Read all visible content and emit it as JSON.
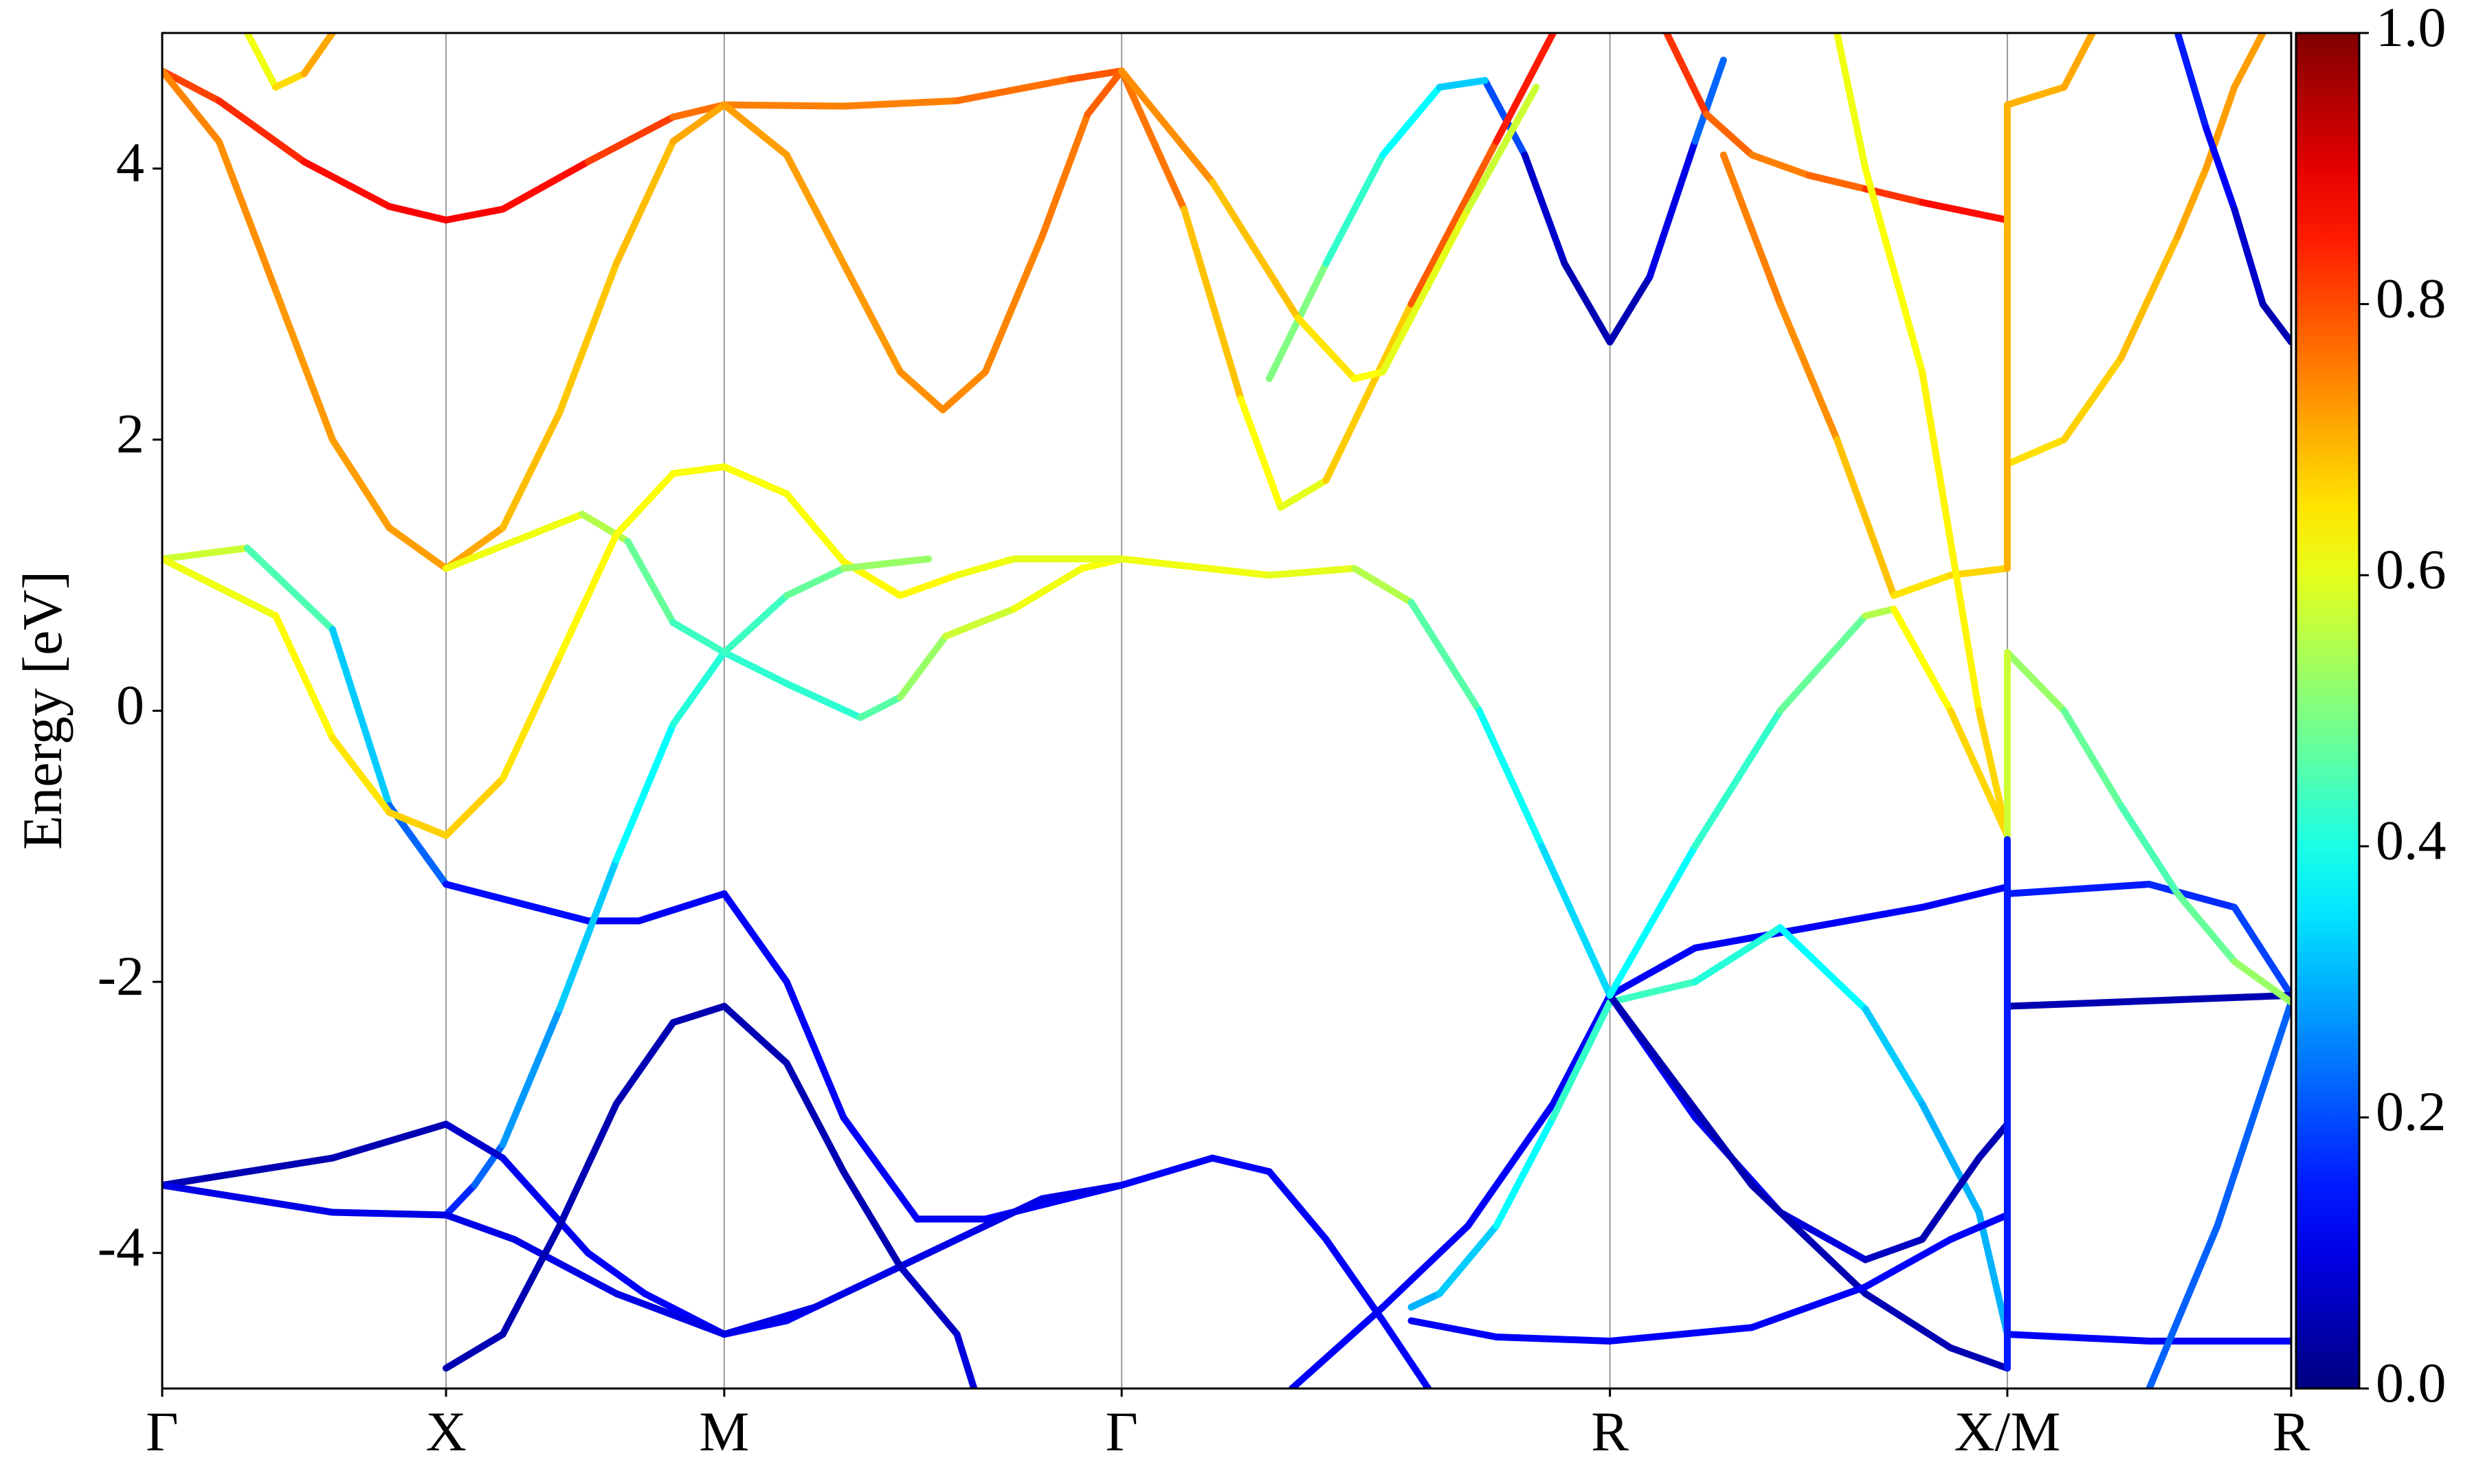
{
  "chart_data": {
    "type": "line",
    "ylabel": "Energy [eV]",
    "xlim": [
      0,
      3.75
    ],
    "ylim": [
      -5,
      5
    ],
    "xticks": [
      {
        "value": 0,
        "label": "Γ"
      },
      {
        "value": 0.5,
        "label": "X"
      },
      {
        "value": 0.99,
        "label": "M"
      },
      {
        "value": 1.69,
        "label": "Γ"
      },
      {
        "value": 2.55,
        "label": "R"
      },
      {
        "value": 3.25,
        "label": "X/M"
      },
      {
        "value": 3.75,
        "label": "R"
      }
    ],
    "yticks": [
      -4,
      -2,
      0,
      2,
      4
    ],
    "grid": true,
    "colormap": "jet",
    "clim": [
      0,
      1
    ],
    "cticks": [
      {
        "value": 0,
        "label": "0.0"
      },
      0.2,
      0.4,
      0.6,
      0.8,
      {
        "value": 1,
        "label": "1.0"
      }
    ],
    "series": [
      {
        "x": [
          0,
          0.1,
          0.25,
          0.4,
          0.5,
          0.6,
          0.75,
          0.9,
          0.99,
          1.2,
          1.4,
          1.6,
          1.69
        ],
        "values": [
          4.72,
          4.5,
          4.05,
          3.72,
          3.62,
          3.7,
          4.05,
          4.38,
          4.47,
          4.46,
          4.5,
          4.66,
          4.72
        ],
        "weights": [
          0.8,
          0.82,
          0.85,
          0.88,
          0.88,
          0.88,
          0.85,
          0.78,
          0.75,
          0.75,
          0.75,
          0.78,
          0.8
        ]
      },
      {
        "x": [
          0,
          0.1,
          0.2,
          0.3,
          0.4,
          0.5,
          0.6,
          0.7,
          0.8,
          0.9,
          0.99,
          1.1,
          1.2,
          1.3,
          1.375,
          1.45,
          1.55,
          1.63,
          1.69
        ],
        "values": [
          4.72,
          4.2,
          3.1,
          2.0,
          1.35,
          1.05,
          1.35,
          2.2,
          3.3,
          4.2,
          4.47,
          4.1,
          3.3,
          2.5,
          2.22,
          2.5,
          3.5,
          4.4,
          4.72
        ],
        "weights": [
          0.75,
          0.74,
          0.73,
          0.72,
          0.72,
          0.72,
          0.7,
          0.68,
          0.68,
          0.7,
          0.72,
          0.72,
          0.72,
          0.73,
          0.74,
          0.74,
          0.75,
          0.76,
          0.8
        ]
      },
      {
        "x": [
          0.5,
          0.74,
          0.82,
          0.9,
          0.99,
          1.1,
          1.23,
          1.3,
          1.38,
          1.5,
          1.62,
          1.69,
          1.95,
          2.1,
          2.2,
          2.32,
          2.43,
          2.55
        ],
        "values": [
          1.05,
          1.45,
          1.25,
          0.65,
          0.43,
          0.2,
          -0.05,
          0.1,
          0.55,
          0.75,
          1.05,
          1.12,
          1.0,
          1.05,
          0.8,
          0.0,
          -1.0,
          -2.1
        ],
        "weights": [
          0.62,
          0.6,
          0.5,
          0.45,
          0.42,
          0.42,
          0.42,
          0.5,
          0.55,
          0.6,
          0.62,
          0.62,
          0.6,
          0.6,
          0.5,
          0.42,
          0.35,
          0.33
        ]
      },
      {
        "x": [
          0,
          0.15,
          0.3,
          0.4,
          0.5,
          0.75,
          0.84,
          0.99,
          1.1,
          1.2,
          1.33,
          1.45,
          1.69
        ],
        "values": [
          1.12,
          1.2,
          0.6,
          -0.7,
          -1.28,
          -1.55,
          -1.55,
          -1.35,
          -2.0,
          -3.0,
          -3.75,
          -3.75,
          -3.5
        ],
        "weights": [
          0.6,
          0.55,
          0.35,
          0.3,
          0.15,
          0.12,
          0.12,
          0.12,
          0.12,
          0.12,
          0.12,
          0.12,
          0.12
        ]
      },
      {
        "x": [
          0,
          0.2,
          0.3,
          0.4,
          0.5,
          0.6,
          0.7,
          0.8,
          0.9,
          0.99,
          1.1,
          1.2,
          1.3,
          1.4,
          1.5,
          1.69
        ],
        "values": [
          1.12,
          0.7,
          -0.2,
          -0.75,
          -0.92,
          -0.5,
          0.4,
          1.3,
          1.75,
          1.8,
          1.6,
          1.1,
          0.85,
          1.0,
          1.12,
          1.12
        ],
        "weights": [
          0.6,
          0.62,
          0.64,
          0.66,
          0.68,
          0.66,
          0.64,
          0.62,
          0.62,
          0.62,
          0.62,
          0.62,
          0.64,
          0.62,
          0.6,
          0.6
        ]
      },
      {
        "x": [
          0.5,
          0.55,
          0.6,
          0.7,
          0.8,
          0.9,
          0.99,
          1.1,
          1.2,
          1.35
        ],
        "values": [
          -3.72,
          -3.5,
          -3.2,
          -2.2,
          -1.1,
          -0.1,
          0.43,
          0.85,
          1.05,
          1.12
        ],
        "weights": [
          0.12,
          0.2,
          0.25,
          0.3,
          0.35,
          0.4,
          0.42,
          0.45,
          0.5,
          0.55
        ]
      },
      {
        "x": [
          0,
          0.3,
          0.5,
          0.6,
          0.75,
          0.85,
          0.99,
          1.1,
          1.3,
          1.55,
          1.69
        ],
        "values": [
          -3.5,
          -3.3,
          -3.05,
          -3.3,
          -4.0,
          -4.3,
          -4.6,
          -4.5,
          -4.1,
          -3.6,
          -3.5
        ],
        "weights": [
          0.05,
          0.05,
          0.05,
          0.1,
          0.12,
          0.12,
          0.12,
          0.12,
          0.12,
          0.12,
          0.12
        ]
      },
      {
        "x": [
          0,
          0.3,
          0.5,
          0.62,
          0.8,
          0.99,
          1.15,
          1.3,
          1.55,
          1.69
        ],
        "values": [
          -3.5,
          -3.7,
          -3.72,
          -3.9,
          -4.3,
          -4.6,
          -4.4,
          -4.1,
          -3.6,
          -3.5
        ],
        "weights": [
          0.1,
          0.1,
          0.1,
          0.1,
          0.1,
          0.1,
          0.1,
          0.1,
          0.1,
          0.1
        ]
      },
      {
        "x": [
          0.5,
          0.6,
          0.7,
          0.8,
          0.9,
          0.99,
          1.1,
          1.2,
          1.3,
          1.4,
          1.43
        ],
        "values": [
          -4.85,
          -4.6,
          -3.8,
          -2.9,
          -2.3,
          -2.18,
          -2.6,
          -3.4,
          -4.1,
          -4.6,
          -5.0
        ],
        "weights": [
          0.05,
          0.05,
          0.05,
          0.05,
          0.05,
          0.05,
          0.05,
          0.05,
          0.05,
          0.08,
          0.1
        ]
      },
      {
        "x": [
          1.69,
          1.85,
          1.95,
          2.05,
          2.15,
          2.23
        ],
        "values": [
          -3.5,
          -3.3,
          -3.4,
          -3.9,
          -4.5,
          -5.0
        ],
        "weights": [
          0.12,
          0.12,
          0.12,
          0.12,
          0.12,
          0.12
        ]
      },
      {
        "x": [
          1.99,
          2.15,
          2.3,
          2.45,
          2.55,
          2.7,
          2.9,
          3.1,
          3.25,
          3.25,
          3.5,
          3.65,
          3.75
        ],
        "values": [
          -5.0,
          -4.4,
          -3.8,
          -2.9,
          -2.1,
          -1.75,
          -1.6,
          -1.45,
          -1.3,
          -1.35,
          -1.28,
          -1.45,
          -2.1
        ],
        "weights": [
          0.12,
          0.12,
          0.12,
          0.12,
          0.12,
          0.12,
          0.12,
          0.12,
          0.12,
          0.15,
          0.15,
          0.18,
          0.2
        ]
      },
      {
        "x": [
          2.2,
          2.25,
          2.35,
          2.45,
          2.55
        ],
        "values": [
          -4.4,
          -4.3,
          -3.8,
          -3.0,
          -2.15
        ],
        "weights": [
          0.3,
          0.3,
          0.35,
          0.4,
          0.45
        ]
      },
      {
        "x": [
          2.55,
          2.7,
          2.85,
          3.0,
          3.1,
          3.2,
          3.25
        ],
        "values": [
          -2.15,
          -2.0,
          -1.6,
          -2.2,
          -2.9,
          -3.7,
          -4.6
        ],
        "weights": [
          0.45,
          0.42,
          0.4,
          0.35,
          0.3,
          0.3,
          0.3
        ]
      },
      {
        "x": [
          2.55,
          2.7,
          2.85,
          3.0,
          3.1,
          3.2,
          3.25
        ],
        "values": [
          -2.1,
          -3.0,
          -3.7,
          -4.05,
          -3.9,
          -3.3,
          -3.05
        ],
        "weights": [
          0.12,
          0.12,
          0.1,
          0.08,
          0.05,
          0.05,
          0.05
        ]
      },
      {
        "x": [
          2.55,
          2.8,
          3.0,
          3.15,
          3.25
        ],
        "values": [
          -2.1,
          -3.5,
          -4.3,
          -4.7,
          -4.85
        ],
        "weights": [
          0.05,
          0.05,
          0.05,
          0.05,
          0.05
        ]
      },
      {
        "x": [
          2.2,
          2.35,
          2.55,
          2.8,
          3.0,
          3.15,
          3.25
        ],
        "values": [
          -4.5,
          -4.62,
          -4.65,
          -4.55,
          -4.25,
          -3.9,
          -3.72
        ],
        "weights": [
          0.12,
          0.12,
          0.12,
          0.12,
          0.12,
          0.12,
          0.12
        ]
      },
      {
        "x": [
          3.25,
          3.75
        ],
        "values": [
          -2.18,
          -2.1
        ],
        "weights": [
          0.05,
          0.05
        ]
      },
      {
        "x": [
          3.25,
          3.5,
          3.75
        ],
        "values": [
          -4.6,
          -4.65,
          -4.65
        ],
        "weights": [
          0.12,
          0.12,
          0.12
        ]
      },
      {
        "x": [
          3.5,
          3.62,
          3.75
        ],
        "values": [
          -5.0,
          -3.8,
          -2.15
        ],
        "weights": [
          0.22,
          0.22,
          0.22
        ]
      },
      {
        "x": [
          3.25,
          3.35,
          3.45,
          3.55,
          3.65,
          3.75
        ],
        "values": [
          0.43,
          0.0,
          -0.7,
          -1.35,
          -1.85,
          -2.15
        ],
        "weights": [
          0.55,
          0.5,
          0.45,
          0.45,
          0.5,
          0.55
        ]
      },
      {
        "x": [
          3.25,
          3.35,
          3.45,
          3.55,
          3.6,
          3.65,
          3.7
        ],
        "values": [
          1.82,
          2.0,
          2.6,
          3.5,
          4.0,
          4.6,
          5.0
        ],
        "weights": [
          0.65,
          0.66,
          0.68,
          0.7,
          0.72,
          0.72,
          0.72
        ]
      },
      {
        "x": [
          3.25,
          3.35,
          3.4
        ],
        "values": [
          4.47,
          4.6,
          5.0
        ],
        "weights": [
          0.7,
          0.7,
          0.72
        ]
      },
      {
        "x": [
          3.55,
          3.6,
          3.65,
          3.7,
          3.75
        ],
        "values": [
          5.0,
          4.3,
          3.7,
          3.0,
          2.72
        ],
        "weights": [
          0.15,
          0.15,
          0.1,
          0.05,
          0.05
        ]
      },
      {
        "x": [
          2.33,
          2.4,
          2.47,
          2.55,
          2.62,
          2.7,
          2.75
        ],
        "values": [
          4.65,
          4.1,
          3.3,
          2.72,
          3.2,
          4.2,
          4.8
        ],
        "weights": [
          0.3,
          0.1,
          0.05,
          0.05,
          0.05,
          0.15,
          0.3
        ]
      },
      {
        "x": [
          1.95,
          2.05,
          2.15,
          2.25,
          2.33
        ],
        "values": [
          2.45,
          3.3,
          4.1,
          4.6,
          4.65
        ],
        "weights": [
          0.55,
          0.45,
          0.4,
          0.35,
          0.3
        ]
      },
      {
        "x": [
          1.69,
          1.8,
          1.9,
          1.97,
          2.05,
          2.2,
          2.35,
          2.45
        ],
        "values": [
          4.72,
          3.7,
          2.3,
          1.5,
          1.7,
          3.0,
          4.2,
          5.0
        ],
        "weights": [
          0.8,
          0.72,
          0.65,
          0.6,
          0.6,
          0.75,
          0.82,
          0.88
        ]
      },
      {
        "x": [
          1.69,
          1.85,
          2.0,
          2.1,
          2.15,
          2.3,
          2.42
        ],
        "values": [
          4.72,
          3.9,
          2.9,
          2.45,
          2.5,
          3.7,
          4.6
        ],
        "weights": [
          0.75,
          0.72,
          0.65,
          0.65,
          0.6,
          0.6,
          0.55
        ]
      },
      {
        "x": [
          2.65,
          2.72,
          2.8,
          2.9,
          3.0,
          3.1,
          3.25
        ],
        "values": [
          5.0,
          4.4,
          4.1,
          3.95,
          3.85,
          3.75,
          3.62
        ],
        "weights": [
          0.85,
          0.8,
          0.75,
          0.75,
          0.8,
          0.85,
          0.88
        ]
      },
      {
        "x": [
          2.75,
          2.85,
          2.95,
          3.05,
          3.15,
          3.25
        ],
        "values": [
          4.1,
          3.0,
          2.0,
          0.85,
          1.0,
          1.05
        ],
        "weights": [
          0.75,
          0.75,
          0.72,
          0.65,
          0.65,
          0.68
        ]
      },
      {
        "x": [
          2.95,
          3.0,
          3.1,
          3.2,
          3.25
        ],
        "values": [
          5.0,
          4.0,
          2.5,
          0.0,
          -0.92
        ],
        "weights": [
          0.6,
          0.62,
          0.62,
          0.65,
          0.68
        ]
      },
      {
        "x": [
          2.55,
          2.7,
          2.85,
          3.0,
          3.05,
          3.15,
          3.25
        ],
        "values": [
          -2.1,
          -1.0,
          0.0,
          0.7,
          0.75,
          0.0,
          -0.92
        ],
        "weights": [
          0.35,
          0.4,
          0.45,
          0.5,
          0.6,
          0.65,
          0.68
        ]
      },
      {
        "x": [
          0.15,
          0.2,
          0.25,
          0.3
        ],
        "values": [
          5.0,
          4.6,
          4.7,
          5.0
        ],
        "weights": [
          0.6,
          0.62,
          0.7,
          0.72
        ]
      },
      {
        "x": [
          3.25,
          3.25
        ],
        "values": [
          4.47,
          1.05
        ],
        "weights": [
          0.7,
          0.7
        ]
      },
      {
        "x": [
          3.25,
          3.25
        ],
        "values": [
          0.43,
          -0.92
        ],
        "weights": [
          0.55,
          0.6
        ]
      },
      {
        "x": [
          3.25,
          3.25
        ],
        "values": [
          -0.95,
          -4.85
        ],
        "weights": [
          0.15,
          0.15
        ]
      }
    ]
  }
}
